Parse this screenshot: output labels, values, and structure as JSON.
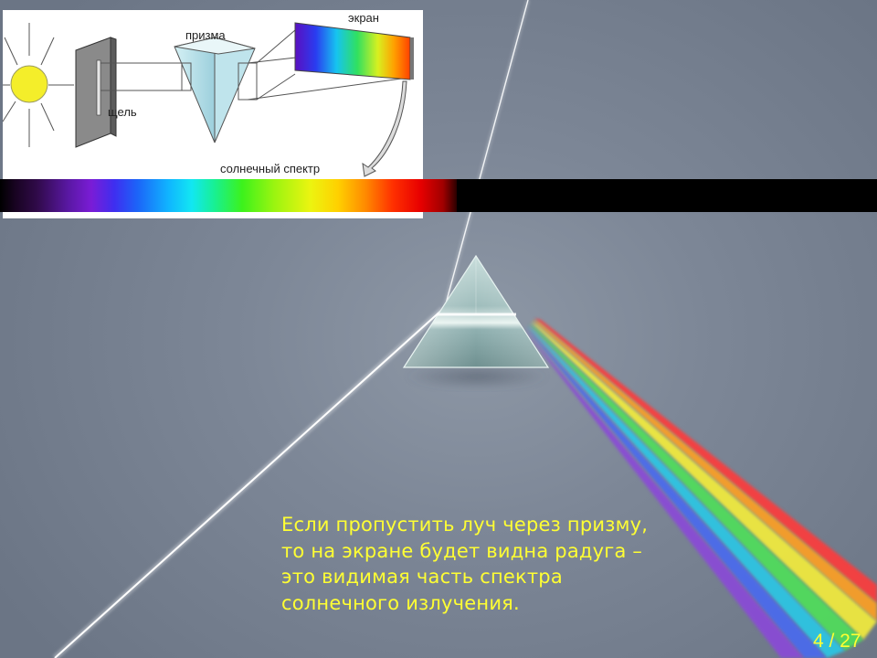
{
  "diagram": {
    "labels": {
      "slit": "щель",
      "prism": "призма",
      "screen": "экран",
      "solar_spectrum": "солнечный спектр"
    },
    "icons": [
      "sun-icon",
      "slit-plate",
      "prism-icon",
      "screen-icon",
      "arrow-icon"
    ]
  },
  "caption": {
    "lines": [
      "Если пропустить луч через призму,",
      "то на экране будет видна радуга –",
      "это видимая часть спектра",
      "солнечного излучения."
    ]
  },
  "pagination": {
    "text": "4 / 27",
    "current": 4,
    "total": 27
  },
  "colors": {
    "caption_text": "#ffff33",
    "background": "#7d8797"
  }
}
